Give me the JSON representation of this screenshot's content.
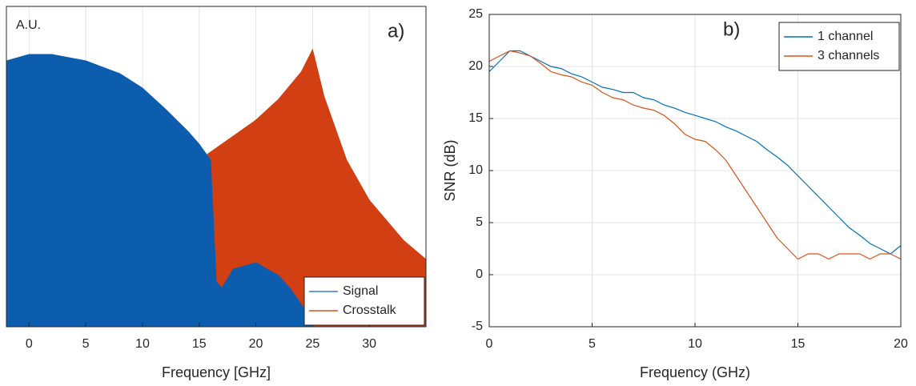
{
  "chart_data": [
    {
      "type": "area",
      "x_label": "Frequency [GHz]",
      "y_label": "A.U.",
      "annotation": "a)",
      "xlim": [
        -2,
        35
      ],
      "xticks": [
        0,
        5,
        10,
        15,
        20,
        25,
        30
      ],
      "ylim": [
        0,
        100
      ],
      "grid": true,
      "legend": "lower right",
      "series": [
        {
          "name": "Signal",
          "color": "#0c5dae",
          "line_color": "#3a7fc3",
          "x": [
            -2,
            0,
            2,
            5,
            8,
            10,
            12,
            13,
            14,
            15,
            16,
            16.5,
            17,
            18,
            20,
            21,
            22,
            23,
            24,
            25
          ],
          "values": [
            83,
            85,
            85,
            83,
            79,
            74.5,
            68,
            64.5,
            61,
            57,
            52,
            14,
            12,
            18,
            20,
            18,
            16,
            12,
            7,
            0
          ]
        },
        {
          "name": "Crosstalk",
          "color": "#d23f12",
          "line_color": "#d9541e",
          "x": [
            -2,
            0,
            5,
            8,
            10,
            12,
            15,
            18,
            20,
            22,
            24,
            25,
            26,
            28,
            30,
            33,
            35
          ],
          "values": [
            46.5,
            46,
            45,
            43,
            42,
            44,
            52,
            59.5,
            64.5,
            71,
            79.5,
            86.5,
            72,
            52,
            39.5,
            27,
            21
          ]
        }
      ]
    },
    {
      "type": "line",
      "x_label": "Frequency (GHz)",
      "y_label": "SNR (dB)",
      "annotation": "b)",
      "xlim": [
        0,
        20
      ],
      "xticks": [
        0,
        5,
        10,
        15,
        20
      ],
      "ylim": [
        -5,
        25
      ],
      "yticks": [
        -5,
        0,
        5,
        10,
        15,
        20,
        25
      ],
      "grid": true,
      "legend": "upper right",
      "x": [
        0,
        0.5,
        1,
        1.5,
        2,
        2.5,
        3,
        3.5,
        4,
        4.5,
        5,
        5.5,
        6,
        6.5,
        7,
        7.5,
        8,
        8.5,
        9,
        9.5,
        10,
        10.5,
        11,
        11.5,
        12,
        12.5,
        13,
        13.5,
        14,
        14.5,
        15,
        15.5,
        16,
        16.5,
        17,
        17.5,
        18,
        18.5,
        19,
        19.5,
        20
      ],
      "series": [
        {
          "name": "1 channel",
          "color": "#0072bd",
          "values": [
            19.5,
            20.5,
            21.5,
            21.5,
            21,
            20.5,
            20,
            19.8,
            19.3,
            19,
            18.5,
            18,
            17.8,
            17.5,
            17.5,
            17,
            16.8,
            16.3,
            16,
            15.6,
            15.3,
            15,
            14.7,
            14.2,
            13.8,
            13.3,
            12.8,
            12,
            11.3,
            10.5,
            9.5,
            8.5,
            7.5,
            6.5,
            5.5,
            4.5,
            3.8,
            3,
            2.5,
            2,
            2.8
          ]
        },
        {
          "name": "3 channels",
          "color": "#d95319",
          "values": [
            20.5,
            21,
            21.5,
            21.3,
            21,
            20.3,
            19.5,
            19.2,
            19,
            18.5,
            18.2,
            17.5,
            17,
            16.8,
            16.3,
            16,
            15.8,
            15.3,
            14.5,
            13.5,
            13,
            12.8,
            12,
            11,
            9.5,
            8,
            6.5,
            5,
            3.5,
            2.5,
            1.5,
            2,
            2,
            1.5,
            2,
            2,
            2,
            1.5,
            2,
            2,
            1.5
          ]
        }
      ]
    }
  ]
}
